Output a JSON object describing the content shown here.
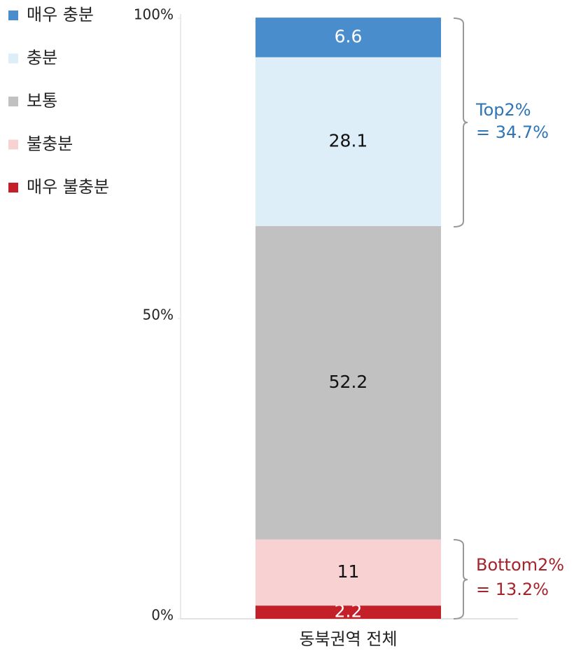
{
  "chart_data": {
    "type": "stacked_bar",
    "categories": [
      "동북권역 전체"
    ],
    "series": [
      {
        "name": "매우 충분",
        "color": "#4a8dcc",
        "label_color": "#ffffff",
        "values": [
          6.6
        ]
      },
      {
        "name": "충분",
        "color": "#deeef9",
        "label_color": "#111111",
        "values": [
          28.1
        ]
      },
      {
        "name": "보통",
        "color": "#c1c1c1",
        "label_color": "#111111",
        "values": [
          52.2
        ]
      },
      {
        "name": "불충분",
        "color": "#f8d2d3",
        "label_color": "#111111",
        "values": [
          11
        ]
      },
      {
        "name": "매우 불충분",
        "color": "#c4202a",
        "label_color": "#ffffff",
        "values": [
          2.2
        ]
      }
    ],
    "ylim": [
      0,
      100
    ],
    "yticks": [
      {
        "value": 0,
        "label": "0%"
      },
      {
        "value": 50,
        "label": "50%"
      },
      {
        "value": 100,
        "label": "100%"
      }
    ],
    "annotations": [
      {
        "lines": [
          "Top2%",
          "= 34.7%"
        ],
        "color": "#2e75b6"
      },
      {
        "lines": [
          "Bottom2%",
          "= 13.2%"
        ],
        "color": "#a5232b"
      }
    ]
  }
}
